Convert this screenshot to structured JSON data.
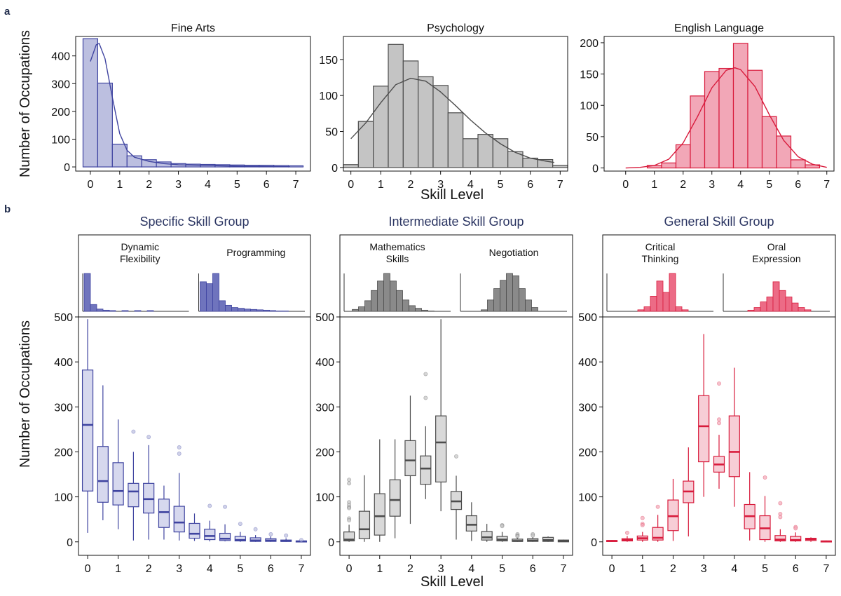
{
  "figure": {
    "panel_a_label": "a",
    "panel_b_label": "b",
    "shared_ylabel_a": "Number of Occupations",
    "shared_xlabel_a": "Skill Level",
    "shared_ylabel_b": "Number of Occupations",
    "shared_xlabel_b": "Skill Level"
  },
  "colors": {
    "blue": "#3f44a0",
    "blue_fill": "#bcbfe0",
    "blue_box": "#d6d8ee",
    "gray": "#4d4d4d",
    "gray_fill": "#c4c4c4",
    "gray_box": "#d9d9d9",
    "red": "#d81b3c",
    "red_fill": "#f2a7b7",
    "red_box": "#f7cdd6",
    "title_b": "#2b3562"
  },
  "chart_data": [
    {
      "type": "bar",
      "id": "fine-arts",
      "title": "Fine Arts",
      "xlabel": "",
      "ylabel": "Number of Occupations",
      "color": "blue",
      "xlim": [
        -0.5,
        7.5
      ],
      "ylim": [
        -15,
        470
      ],
      "yticks": [
        0,
        100,
        200,
        300,
        400
      ],
      "xticks": [
        0,
        1,
        2,
        3,
        4,
        5,
        6,
        7
      ],
      "bin_width": 0.5,
      "bin_start": -0.25,
      "values": [
        462,
        302,
        82,
        40,
        26,
        18,
        12,
        10,
        9,
        8,
        7,
        6,
        6,
        5,
        4
      ],
      "curve": {
        "type": "fit",
        "x": [
          0.0,
          0.2,
          0.3,
          0.5,
          0.75,
          1.0,
          1.25,
          1.5,
          2.0,
          2.5,
          3.0,
          4.0,
          5.0,
          6.0,
          6.8
        ],
        "y": [
          380,
          440,
          445,
          390,
          250,
          120,
          60,
          35,
          20,
          12,
          8,
          5,
          3,
          2,
          1
        ]
      }
    },
    {
      "type": "bar",
      "id": "psychology",
      "title": "Psychology",
      "xlabel": "Skill Level",
      "ylabel": "",
      "color": "gray",
      "xlim": [
        -0.25,
        7.25
      ],
      "ylim": [
        -5,
        182
      ],
      "yticks": [
        0,
        50,
        100,
        150
      ],
      "xticks": [
        0,
        1,
        2,
        3,
        4,
        5,
        6,
        7
      ],
      "bin_width": 0.5,
      "bin_start": -0.25,
      "values": [
        4,
        64,
        113,
        171,
        148,
        126,
        114,
        76,
        40,
        46,
        40,
        22,
        13,
        11,
        3
      ],
      "curve": {
        "type": "fit",
        "x": [
          0.0,
          0.5,
          1.0,
          1.5,
          2.0,
          2.5,
          3.0,
          3.5,
          4.0,
          4.5,
          5.0,
          5.5,
          6.0,
          6.5,
          6.8
        ],
        "y": [
          40,
          62,
          90,
          115,
          124,
          120,
          105,
          86,
          66,
          48,
          33,
          21,
          13,
          9,
          7
        ]
      }
    },
    {
      "type": "bar",
      "id": "english-language",
      "title": "English Language",
      "xlabel": "",
      "ylabel": "",
      "color": "red",
      "xlim": [
        -0.75,
        7.25
      ],
      "ylim": [
        -5,
        210
      ],
      "yticks": [
        0,
        50,
        100,
        150,
        200
      ],
      "xticks": [
        0,
        1,
        2,
        3,
        4,
        5,
        6,
        7
      ],
      "bin_width": 0.5,
      "bin_start": 0.75,
      "values": [
        4,
        8,
        37,
        115,
        154,
        159,
        199,
        156,
        82,
        51,
        13,
        5
      ],
      "curve": {
        "type": "fit",
        "x": [
          0.0,
          0.5,
          1.0,
          1.5,
          2.0,
          2.5,
          3.0,
          3.5,
          3.8,
          4.0,
          4.5,
          5.0,
          5.5,
          6.0,
          6.5,
          7.0
        ],
        "y": [
          0,
          1,
          4,
          14,
          40,
          82,
          128,
          156,
          160,
          157,
          130,
          85,
          44,
          18,
          6,
          1
        ]
      }
    },
    {
      "type": "box",
      "id": "specific-skill-group",
      "title": "Specific Skill Group",
      "xlabel": "",
      "ylabel": "Number of Occupations",
      "color": "blue",
      "xlim": [
        -0.3,
        7.3
      ],
      "ylim": [
        -30,
        500
      ],
      "yticks": [
        0,
        100,
        200,
        300,
        400,
        500
      ],
      "xticks": [
        0,
        1,
        2,
        3,
        4,
        5,
        6,
        7
      ],
      "x": [
        0,
        0.5,
        1,
        1.5,
        2,
        2.5,
        3,
        3.5,
        4,
        4.5,
        5,
        5.5,
        6,
        6.5,
        7
      ],
      "boxes": [
        {
          "min": 20,
          "q1": 113,
          "median": 260,
          "q3": 382,
          "max": 495,
          "outliers": []
        },
        {
          "min": 48,
          "q1": 88,
          "median": 135,
          "q3": 212,
          "max": 348,
          "outliers": []
        },
        {
          "min": 28,
          "q1": 82,
          "median": 113,
          "q3": 176,
          "max": 272,
          "outliers": []
        },
        {
          "min": 3,
          "q1": 78,
          "median": 112,
          "q3": 130,
          "max": 200,
          "outliers": [
            245
          ]
        },
        {
          "min": 5,
          "q1": 64,
          "median": 95,
          "q3": 130,
          "max": 215,
          "outliers": [
            233
          ]
        },
        {
          "min": 5,
          "q1": 32,
          "median": 66,
          "q3": 95,
          "max": 125,
          "outliers": []
        },
        {
          "min": 3,
          "q1": 22,
          "median": 43,
          "q3": 79,
          "max": 153,
          "outliers": [
            210,
            196
          ]
        },
        {
          "min": 2,
          "q1": 8,
          "median": 18,
          "q3": 41,
          "max": 63,
          "outliers": []
        },
        {
          "min": 1,
          "q1": 5,
          "median": 13,
          "q3": 28,
          "max": 47,
          "outliers": [
            80
          ]
        },
        {
          "min": 1,
          "q1": 3,
          "median": 7,
          "q3": 19,
          "max": 39,
          "outliers": [
            78
          ]
        },
        {
          "min": 0,
          "q1": 2,
          "median": 4,
          "q3": 12,
          "max": 22,
          "outliers": [
            40
          ]
        },
        {
          "min": 0,
          "q1": 1,
          "median": 3,
          "q3": 9,
          "max": 15,
          "outliers": [
            28
          ]
        },
        {
          "min": 0,
          "q1": 1,
          "median": 3,
          "q3": 7,
          "max": 12,
          "outliers": [
            17
          ]
        },
        {
          "min": 0,
          "q1": 1,
          "median": 2,
          "q3": 4,
          "max": 8,
          "outliers": [
            14
          ]
        },
        {
          "min": 0,
          "q1": 0,
          "median": 1,
          "q3": 2,
          "max": 4,
          "outliers": [
            4
          ]
        }
      ],
      "insets": [
        {
          "label": "Dynamic\nFlexibility",
          "values": [
            100,
            18,
            6,
            3,
            2,
            0,
            2,
            0,
            2,
            0,
            2,
            0,
            0,
            0
          ]
        },
        {
          "label": "Programming",
          "values": [
            78,
            73,
            100,
            28,
            16,
            10,
            8,
            6,
            5,
            4,
            3,
            2,
            1,
            1
          ]
        }
      ]
    },
    {
      "type": "box",
      "id": "intermediate-skill-group",
      "title": "Intermediate Skill Group",
      "xlabel": "Skill Level",
      "ylabel": "",
      "color": "gray",
      "xlim": [
        -0.3,
        7.3
      ],
      "ylim": [
        -30,
        500
      ],
      "yticks": [
        0,
        100,
        200,
        300,
        400,
        500
      ],
      "xticks": [
        0,
        1,
        2,
        3,
        4,
        5,
        6,
        7
      ],
      "x": [
        0,
        0.5,
        1,
        1.5,
        2,
        2.5,
        3,
        3.5,
        4,
        4.5,
        5,
        5.5,
        6,
        6.5,
        7
      ],
      "boxes": [
        {
          "min": 0,
          "q1": 2,
          "median": 5,
          "q3": 22,
          "max": 38,
          "outliers": [
            138,
            130,
            88,
            82,
            77,
            75,
            52,
            48
          ]
        },
        {
          "min": 0,
          "q1": 7,
          "median": 28,
          "q3": 68,
          "max": 148,
          "outliers": []
        },
        {
          "min": 0,
          "q1": 15,
          "median": 57,
          "q3": 107,
          "max": 228,
          "outliers": []
        },
        {
          "min": 8,
          "q1": 57,
          "median": 93,
          "q3": 138,
          "max": 228,
          "outliers": []
        },
        {
          "min": 40,
          "q1": 147,
          "median": 181,
          "q3": 225,
          "max": 325,
          "outliers": []
        },
        {
          "min": 95,
          "q1": 128,
          "median": 163,
          "q3": 191,
          "max": 257,
          "outliers": [
            373,
            320
          ]
        },
        {
          "min": 68,
          "q1": 133,
          "median": 221,
          "q3": 280,
          "max": 495,
          "outliers": []
        },
        {
          "min": 5,
          "q1": 72,
          "median": 90,
          "q3": 112,
          "max": 147,
          "outliers": [
            190
          ]
        },
        {
          "min": 2,
          "q1": 24,
          "median": 38,
          "q3": 58,
          "max": 88,
          "outliers": []
        },
        {
          "min": 0,
          "q1": 4,
          "median": 10,
          "q3": 23,
          "max": 40,
          "outliers": []
        },
        {
          "min": 0,
          "q1": 2,
          "median": 5,
          "q3": 12,
          "max": 22,
          "outliers": [
            37,
            35
          ]
        },
        {
          "min": 0,
          "q1": 1,
          "median": 2,
          "q3": 6,
          "max": 10,
          "outliers": [
            17,
            14,
            12
          ]
        },
        {
          "min": 0,
          "q1": 1,
          "median": 3,
          "q3": 7,
          "max": 10,
          "outliers": [
            17,
            14
          ]
        },
        {
          "min": 0,
          "q1": 1,
          "median": 4,
          "q3": 10,
          "max": 12,
          "outliers": []
        },
        {
          "min": 0,
          "q1": 0,
          "median": 2,
          "q3": 4,
          "max": 5,
          "outliers": []
        }
      ],
      "insets": [
        {
          "label": "Mathematics\nSkills",
          "values": [
            5,
            12,
            28,
            55,
            80,
            100,
            80,
            55,
            30,
            15,
            8,
            3,
            1
          ]
        },
        {
          "label": "Negotiation",
          "values": [
            4,
            30,
            60,
            82,
            100,
            94,
            60,
            30,
            10
          ]
        }
      ]
    },
    {
      "type": "box",
      "id": "general-skill-group",
      "title": "General Skill Group",
      "xlabel": "",
      "ylabel": "",
      "color": "red",
      "xlim": [
        -0.3,
        7.3
      ],
      "ylim": [
        -30,
        500
      ],
      "yticks": [
        0,
        100,
        200,
        300,
        400,
        500
      ],
      "xticks": [
        0,
        1,
        2,
        3,
        4,
        5,
        6,
        7
      ],
      "x": [
        0,
        0.5,
        1,
        1.5,
        2,
        2.5,
        3,
        3.5,
        4,
        4.5,
        5,
        5.5,
        6,
        6.5,
        7
      ],
      "boxes": [
        {
          "min": 0,
          "q1": 1,
          "median": 2,
          "q3": 3,
          "max": 4,
          "outliers": []
        },
        {
          "min": 0,
          "q1": 2,
          "median": 4,
          "q3": 7,
          "max": 13,
          "outliers": [
            20
          ]
        },
        {
          "min": 0,
          "q1": 4,
          "median": 8,
          "q3": 13,
          "max": 22,
          "outliers": [
            53,
            40,
            37
          ]
        },
        {
          "min": 0,
          "q1": 4,
          "median": 9,
          "q3": 32,
          "max": 60,
          "outliers": [
            78
          ]
        },
        {
          "min": 2,
          "q1": 25,
          "median": 57,
          "q3": 93,
          "max": 140,
          "outliers": []
        },
        {
          "min": 12,
          "q1": 87,
          "median": 112,
          "q3": 135,
          "max": 210,
          "outliers": []
        },
        {
          "min": 100,
          "q1": 178,
          "median": 257,
          "q3": 325,
          "max": 462,
          "outliers": []
        },
        {
          "min": 118,
          "q1": 155,
          "median": 172,
          "q3": 190,
          "max": 238,
          "outliers": [
            352,
            272,
            264
          ]
        },
        {
          "min": 78,
          "q1": 145,
          "median": 200,
          "q3": 280,
          "max": 387,
          "outliers": []
        },
        {
          "min": 3,
          "q1": 29,
          "median": 57,
          "q3": 83,
          "max": 155,
          "outliers": []
        },
        {
          "min": 0,
          "q1": 5,
          "median": 30,
          "q3": 58,
          "max": 102,
          "outliers": [
            143
          ]
        },
        {
          "min": 0,
          "q1": 2,
          "median": 5,
          "q3": 14,
          "max": 28,
          "outliers": [
            86,
            62,
            55
          ]
        },
        {
          "min": 0,
          "q1": 2,
          "median": 4,
          "q3": 12,
          "max": 21,
          "outliers": [
            33,
            30
          ]
        },
        {
          "min": 0,
          "q1": 3,
          "median": 6,
          "q3": 8,
          "max": 10,
          "outliers": []
        },
        {
          "min": 0,
          "q1": 0,
          "median": 1,
          "q3": 2,
          "max": 3,
          "outliers": []
        }
      ],
      "insets": [
        {
          "label": "Critical\nThinking",
          "values": [
            4,
            12,
            40,
            80,
            50,
            100,
            12,
            4
          ]
        },
        {
          "label": "Oral\nExpression",
          "values": [
            3,
            10,
            25,
            38,
            78,
            55,
            38,
            22,
            10,
            4
          ]
        }
      ]
    }
  ]
}
